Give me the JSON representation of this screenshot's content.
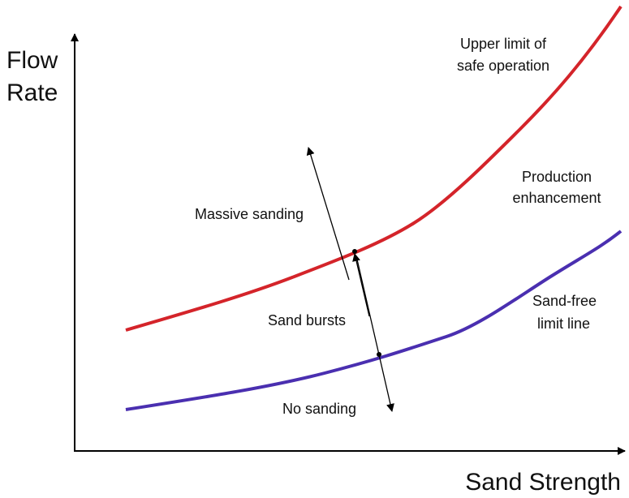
{
  "axes": {
    "y_label": [
      "Flow",
      "Rate"
    ],
    "x_label": "Sand Strength"
  },
  "curves": {
    "upper": {
      "label": [
        "Upper limit of",
        "safe operation"
      ]
    },
    "lower": {
      "label": [
        "Sand-free",
        "limit line"
      ]
    }
  },
  "regions": {
    "enhancement": [
      "Production",
      "enhancement"
    ],
    "massive": "Massive sanding",
    "bursts": "Sand bursts",
    "none": "No sanding"
  }
}
